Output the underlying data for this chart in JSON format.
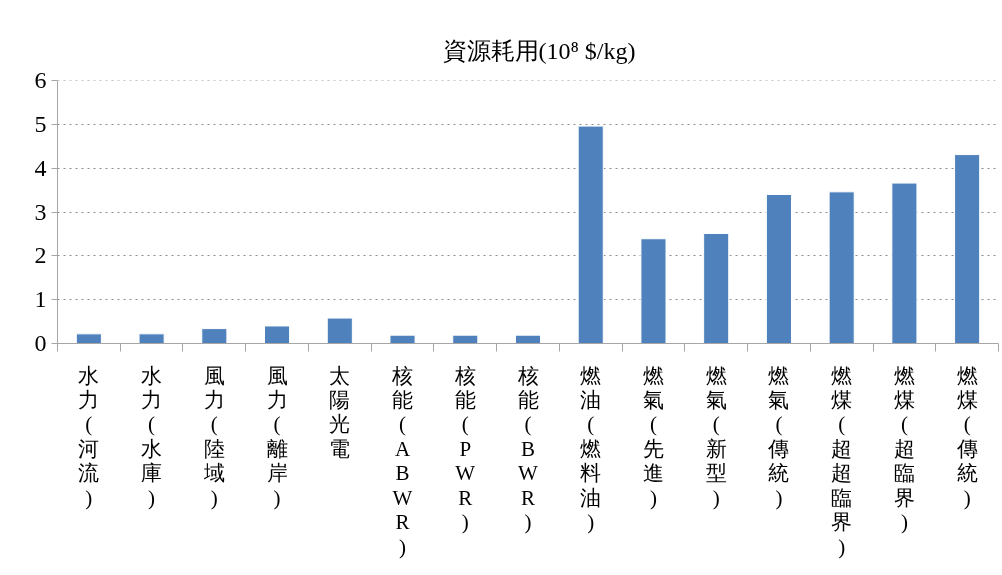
{
  "chart_data": {
    "type": "bar",
    "title": "資源耗用(10⁸ $/kg)",
    "categories": [
      "水力(河流)",
      "水力(水庫)",
      "風力(陸域)",
      "風力(離岸)",
      "太陽光電",
      "核能(ABWR)",
      "核能(PWR)",
      "核能(BWR)",
      "燃油(燃料油)",
      "燃氣(先進)",
      "燃氣(新型)",
      "燃氣(傳統)",
      "燃煤(超超臨界)",
      "燃煤(超臨界)",
      "燃煤(傳統)"
    ],
    "values": [
      0.22,
      0.22,
      0.34,
      0.4,
      0.58,
      0.19,
      0.19,
      0.19,
      4.96,
      2.39,
      2.51,
      3.4,
      3.46,
      3.66,
      4.31
    ],
    "color": "#4f81bd",
    "ylim": [
      0,
      6
    ],
    "yticks": [
      0,
      1,
      2,
      3,
      4,
      5,
      6
    ],
    "grid": "y"
  }
}
